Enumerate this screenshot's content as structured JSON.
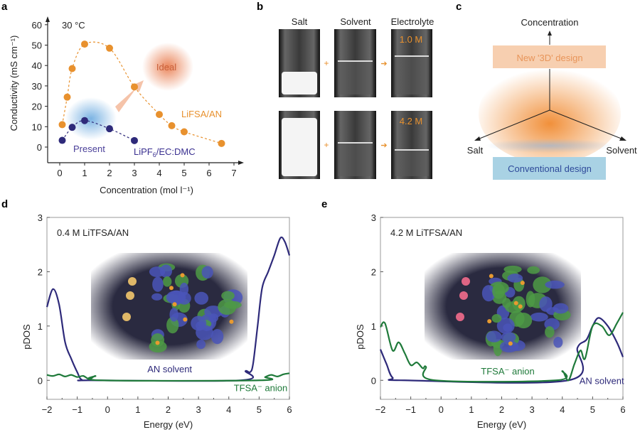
{
  "panel_letters": [
    "a",
    "b",
    "c",
    "d",
    "e"
  ],
  "colors": {
    "orange": "#e8912e",
    "navy": "#2e2a7a",
    "green": "#1f7a3a",
    "blue_glow": "#5aa0dc",
    "ideal_glow": "#e8794a"
  },
  "chart_data": [
    {
      "panel": "a",
      "type": "scatter",
      "annotation": "30 °C",
      "xlabel": "Concentration (mol l⁻¹)",
      "ylabel": "Conductivity (mS cm⁻¹)",
      "xlim": [
        0,
        7
      ],
      "ylim": [
        0,
        60
      ],
      "xticks": [
        "0",
        "1",
        "2",
        "3",
        "4",
        "5",
        "6",
        "7"
      ],
      "yticks": [
        "0",
        "10",
        "20",
        "30",
        "40",
        "50",
        "60"
      ],
      "series": [
        {
          "name": "LiFSA/AN",
          "color": "#e8912e",
          "x": [
            0.1,
            0.3,
            0.5,
            1,
            2,
            3,
            4,
            4.5,
            5,
            6.5
          ],
          "y": [
            11,
            24.5,
            38.5,
            50.5,
            48.5,
            29.5,
            16,
            10.5,
            7.5,
            1.8
          ]
        },
        {
          "name": "LiPF6/EC:DMC",
          "name_main": "LiPF",
          "name_sub": "6",
          "name_tail": "/EC:DMC",
          "color": "#2e2a7a",
          "x": [
            0.1,
            0.5,
            1,
            2,
            3
          ],
          "y": [
            3.3,
            9.7,
            13,
            9,
            3.2
          ]
        }
      ],
      "labels": {
        "present": "Present",
        "ideal": "Ideal"
      }
    },
    {
      "panel": "d",
      "type": "line",
      "annotation": "0.4 M LiTFSA/AN",
      "xlabel": "Energy (eV)",
      "ylabel": "pDOS",
      "xlim": [
        -2,
        6
      ],
      "ylim": [
        -0.35,
        3
      ],
      "xticks": [
        "−2",
        "−1",
        "0",
        "1",
        "2",
        "3",
        "4",
        "5",
        "6"
      ],
      "yticks": [
        "0",
        "1",
        "2",
        "3"
      ],
      "series": [
        {
          "name": "AN solvent",
          "color": "#2e2a7a",
          "x": [
            -2,
            -1.8,
            -1.6,
            -1.4,
            -1.2,
            -1.0,
            -0.85,
            -0.5,
            4.4,
            4.55,
            4.7,
            4.8,
            4.95,
            5.1,
            5.3,
            5.5,
            5.7,
            5.85,
            6
          ],
          "y": [
            1.35,
            1.68,
            1.4,
            0.7,
            0.4,
            0.15,
            0.01,
            0,
            0,
            0.17,
            0.15,
            0.3,
            1.0,
            1.7,
            2.0,
            2.3,
            2.62,
            2.55,
            2.3
          ]
        },
        {
          "name": "TFSA⁻ anion",
          "color": "#1f7a3a",
          "x": [
            -2,
            -1.8,
            -1.6,
            -1.4,
            -1.2,
            -1,
            -0.8,
            -0.6,
            -0.4,
            -0.2,
            5,
            5.2,
            5.4,
            5.6,
            5.8,
            6
          ],
          "y": [
            0.1,
            0.08,
            0.11,
            0.07,
            0.1,
            0.06,
            0.08,
            0.02,
            0.08,
            0,
            0,
            0.06,
            0.1,
            0.07,
            0.11,
            0.13
          ]
        }
      ]
    },
    {
      "panel": "e",
      "type": "line",
      "annotation": "4.2 M LiTFSA/AN",
      "xlabel": "Energy (eV)",
      "ylabel": "pDOS",
      "xlim": [
        -2,
        6
      ],
      "ylim": [
        -0.35,
        3
      ],
      "xticks": [
        "−2",
        "−1",
        "0",
        "1",
        "2",
        "3",
        "4",
        "5",
        "6"
      ],
      "yticks": [
        "0",
        "1",
        "2",
        "3"
      ],
      "series": [
        {
          "name": "AN solvent",
          "color": "#2e2a7a",
          "x": [
            -2,
            -1.8,
            -1.6,
            -1.2,
            4.2,
            4.5,
            4.8,
            5.0,
            5.2,
            5.5,
            5.8,
            6
          ],
          "y": [
            0.57,
            0.3,
            0.05,
            0,
            0,
            0.6,
            0.75,
            1.0,
            1.15,
            1.0,
            0.7,
            0.43
          ]
        },
        {
          "name": "TFSA⁻ anion",
          "color": "#1f7a3a",
          "x": [
            -2,
            -1.85,
            -1.6,
            -1.4,
            -1.2,
            -1,
            -0.8,
            -0.6,
            -0.5,
            -0.2,
            3.8,
            4,
            4.2,
            4.4,
            4.6,
            4.75,
            5,
            5.3,
            5.55,
            5.8,
            6
          ],
          "y": [
            0.98,
            1.05,
            0.55,
            0.7,
            0.5,
            0.28,
            0.33,
            0.22,
            0.25,
            0,
            0,
            0.17,
            0,
            0.3,
            0.55,
            0.4,
            1.0,
            1.0,
            0.83,
            1.05,
            1.25
          ]
        }
      ]
    }
  ],
  "panel_b": {
    "headers": [
      "Salt",
      "Solvent",
      "Electrolyte"
    ],
    "plus": "+",
    "concentrations": [
      "1.0 M",
      "4.2 M"
    ]
  },
  "panel_c": {
    "axis_concentration": "Concentration",
    "axis_salt": "Salt",
    "axis_solvent": "Solvent",
    "new_design": "New '3D' design",
    "conventional_design": "Conventional design"
  }
}
